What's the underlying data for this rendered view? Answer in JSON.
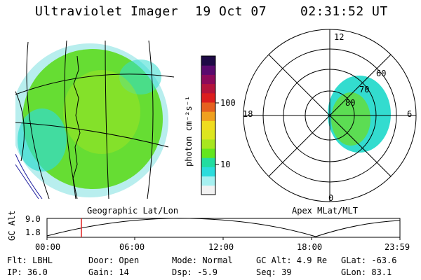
{
  "header": {
    "instrument": "Ultraviolet Imager",
    "date": "19 Oct 07",
    "time": "02:31:52 UT"
  },
  "colorbar": {
    "unit_label": "photon cm⁻²s⁻¹",
    "ticks": [
      "100",
      "10"
    ],
    "colors": [
      "#f2f2f2",
      "#a6f0f0",
      "#2bdcdc",
      "#22dca0",
      "#63e61e",
      "#a8e61e",
      "#dce61e",
      "#f0dc1e",
      "#f0a01e",
      "#e6601e",
      "#dc1e1e",
      "#b4143c",
      "#8c0a5a",
      "#5a0a6e",
      "#1e0a46"
    ]
  },
  "left_panel": {
    "caption": "Geographic Lat/Lon",
    "colors": {
      "main": "#66dd33",
      "edge": "#9ee8e8",
      "cyan": "#33dccf"
    }
  },
  "polar_panel": {
    "caption": "Apex MLat/MLT",
    "mlt_labels": [
      "12",
      "18",
      "6",
      "0"
    ],
    "mlat_labels": [
      "60",
      "70",
      "80"
    ]
  },
  "altitude_plot": {
    "ylabel": "GC Alt",
    "ytick_labels": [
      "9.0",
      "1.8"
    ],
    "xtick_labels": [
      "00:00",
      "06:00",
      "12:00",
      "18:00",
      "23:59"
    ],
    "marker_color": "#e02020"
  },
  "info": {
    "flt": "Flt: LBHL",
    "ip": "IP: 36.0",
    "door": "Door: Open",
    "gain": "Gain: 14",
    "mode": "Mode: Normal",
    "dsp": "Dsp:    -5.9",
    "gc_alt": "GC Alt: 4.9 Re",
    "seq": "Seq: 39",
    "glat": "GLat: -63.6",
    "glon": "GLon:  83.1"
  }
}
